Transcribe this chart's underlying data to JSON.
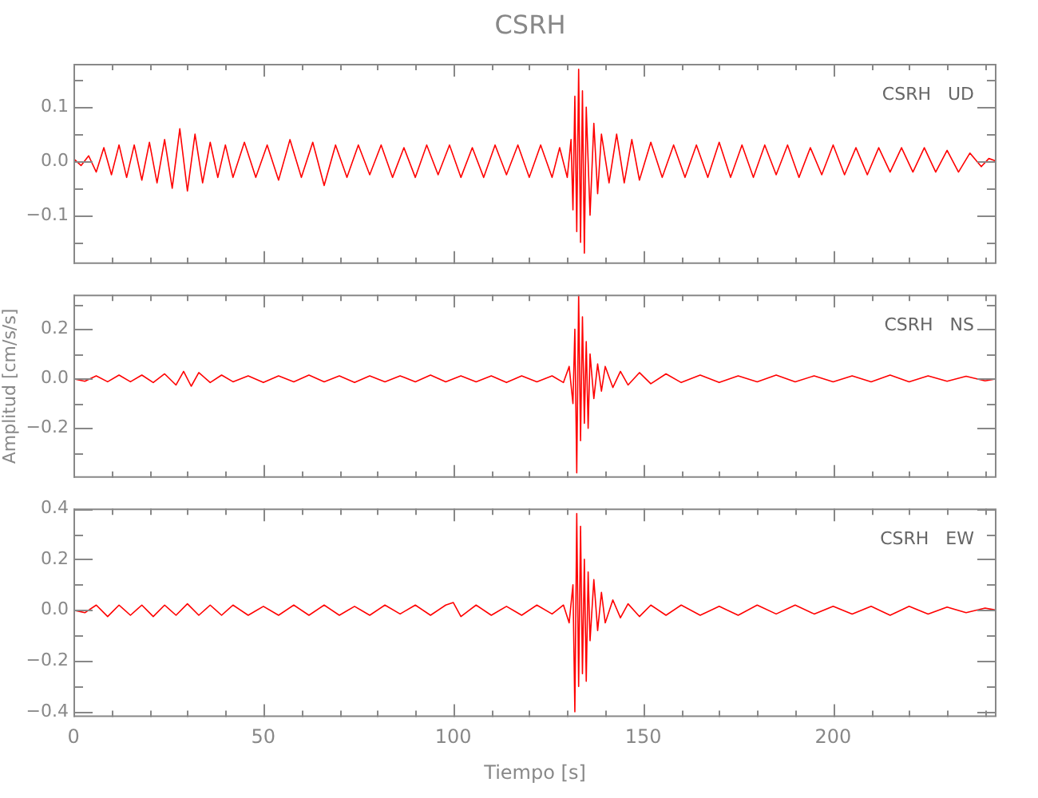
{
  "chart_data": [
    {
      "type": "line",
      "title": "CSRH",
      "annotations": [
        "CSRH   UD"
      ],
      "tick_labels": "y",
      "xlim": [
        0,
        243
      ],
      "ylim": [
        -0.19,
        0.18
      ],
      "xticks": [
        0,
        {
          "value": 10,
          "label": null
        },
        {
          "value": 20,
          "label": null
        },
        {
          "value": 30,
          "label": null
        },
        {
          "value": 40,
          "label": null
        },
        50,
        {
          "value": 60,
          "label": null
        },
        {
          "value": 70,
          "label": null
        },
        {
          "value": 80,
          "label": null
        },
        {
          "value": 90,
          "label": null
        },
        100,
        {
          "value": 110,
          "label": null
        },
        {
          "value": 120,
          "label": null
        },
        {
          "value": 130,
          "label": null
        },
        {
          "value": 140,
          "label": null
        },
        150,
        {
          "value": 160,
          "label": null
        },
        {
          "value": 170,
          "label": null
        },
        {
          "value": 180,
          "label": null
        },
        {
          "value": 190,
          "label": null
        },
        200,
        {
          "value": 210,
          "label": null
        },
        {
          "value": 220,
          "label": null
        },
        {
          "value": 230,
          "label": null
        },
        {
          "value": 240,
          "label": null
        }
      ],
      "yticks": [
        {
          "value": -0.15,
          "label": null
        },
        {
          "value": -0.1,
          "label": "−0.1"
        },
        {
          "value": -0.05,
          "label": null
        },
        {
          "value": 0,
          "label": "0.0"
        },
        {
          "value": 0.05,
          "label": null
        },
        0.1,
        {
          "value": 0.15,
          "label": null
        }
      ],
      "x": [
        0,
        2,
        4,
        6,
        8,
        10,
        12,
        14,
        16,
        18,
        20,
        22,
        24,
        26,
        28,
        30,
        32,
        34,
        36,
        38,
        40,
        42,
        45,
        48,
        51,
        54,
        57,
        60,
        63,
        66,
        69,
        72,
        75,
        78,
        81,
        84,
        87,
        90,
        93,
        96,
        99,
        102,
        105,
        108,
        111,
        114,
        117,
        120,
        123,
        126,
        128,
        130,
        131,
        131.5,
        132,
        132.5,
        133,
        133.5,
        134,
        134.5,
        135,
        136,
        137,
        138,
        139,
        141,
        143,
        145,
        147,
        149,
        152,
        155,
        158,
        161,
        164,
        167,
        170,
        173,
        176,
        179,
        182,
        185,
        188,
        191,
        194,
        197,
        200,
        203,
        206,
        209,
        212,
        215,
        218,
        221,
        224,
        227,
        230,
        233,
        236,
        239,
        241,
        243
      ],
      "series": [
        {
          "color": "#ff0000",
          "values": [
            0.005,
            -0.008,
            0.01,
            -0.02,
            0.025,
            -0.025,
            0.03,
            -0.03,
            0.03,
            -0.035,
            0.035,
            -0.04,
            0.04,
            -0.05,
            0.06,
            -0.055,
            0.05,
            -0.04,
            0.035,
            -0.03,
            0.03,
            -0.03,
            0.035,
            -0.03,
            0.03,
            -0.035,
            0.04,
            -0.03,
            0.035,
            -0.045,
            0.03,
            -0.03,
            0.03,
            -0.025,
            0.03,
            -0.03,
            0.025,
            -0.03,
            0.03,
            -0.025,
            0.03,
            -0.03,
            0.025,
            -0.03,
            0.03,
            -0.025,
            0.03,
            -0.03,
            0.03,
            -0.03,
            0.025,
            -0.03,
            0.04,
            -0.09,
            0.12,
            -0.13,
            0.17,
            -0.15,
            0.13,
            -0.17,
            0.1,
            -0.1,
            0.07,
            -0.06,
            0.05,
            -0.04,
            0.05,
            -0.04,
            0.04,
            -0.035,
            0.035,
            -0.03,
            0.03,
            -0.03,
            0.03,
            -0.03,
            0.035,
            -0.03,
            0.03,
            -0.03,
            0.03,
            -0.025,
            0.03,
            -0.03,
            0.025,
            -0.025,
            0.03,
            -0.025,
            0.025,
            -0.025,
            0.025,
            -0.02,
            0.025,
            -0.02,
            0.025,
            -0.02,
            0.02,
            -0.02,
            0.015,
            -0.01,
            0.005,
            0
          ]
        }
      ]
    },
    {
      "type": "line",
      "ylabel": "Amplitud [cm/s/s]",
      "annotations": [
        "CSRH   NS"
      ],
      "tick_labels": "y",
      "xlim": [
        0,
        243
      ],
      "ylim": [
        -0.4,
        0.34
      ],
      "xticks": [
        0,
        {
          "value": 10,
          "label": null
        },
        {
          "value": 20,
          "label": null
        },
        {
          "value": 30,
          "label": null
        },
        {
          "value": 40,
          "label": null
        },
        50,
        {
          "value": 60,
          "label": null
        },
        {
          "value": 70,
          "label": null
        },
        {
          "value": 80,
          "label": null
        },
        {
          "value": 90,
          "label": null
        },
        100,
        {
          "value": 110,
          "label": null
        },
        {
          "value": 120,
          "label": null
        },
        {
          "value": 130,
          "label": null
        },
        {
          "value": 140,
          "label": null
        },
        150,
        {
          "value": 160,
          "label": null
        },
        {
          "value": 170,
          "label": null
        },
        {
          "value": 180,
          "label": null
        },
        {
          "value": 190,
          "label": null
        },
        200,
        {
          "value": 210,
          "label": null
        },
        {
          "value": 220,
          "label": null
        },
        {
          "value": 230,
          "label": null
        },
        {
          "value": 240,
          "label": null
        }
      ],
      "yticks": [
        {
          "value": -0.3,
          "label": null
        },
        {
          "value": -0.2,
          "label": "−0.2"
        },
        {
          "value": -0.1,
          "label": null
        },
        {
          "value": 0,
          "label": "0.0"
        },
        {
          "value": 0.1,
          "label": null
        },
        0.2,
        {
          "value": 0.3,
          "label": null
        }
      ],
      "x": [
        0,
        3,
        6,
        9,
        12,
        15,
        18,
        21,
        24,
        27,
        29,
        31,
        33,
        36,
        39,
        42,
        46,
        50,
        54,
        58,
        62,
        66,
        70,
        74,
        78,
        82,
        86,
        90,
        94,
        98,
        102,
        106,
        110,
        114,
        118,
        122,
        126,
        129,
        130.5,
        131.5,
        132,
        132.5,
        133,
        133.5,
        134,
        134.5,
        135,
        135.5,
        136,
        137,
        138,
        139,
        140,
        142,
        144,
        146,
        149,
        152,
        156,
        160,
        165,
        170,
        175,
        180,
        185,
        190,
        195,
        200,
        205,
        210,
        215,
        220,
        225,
        230,
        235,
        240,
        243
      ],
      "series": [
        {
          "color": "#ff0000",
          "values": [
            0,
            -0.01,
            0.012,
            -0.012,
            0.015,
            -0.012,
            0.015,
            -0.015,
            0.02,
            -0.025,
            0.03,
            -0.03,
            0.025,
            -0.015,
            0.015,
            -0.012,
            0.012,
            -0.015,
            0.012,
            -0.012,
            0.015,
            -0.012,
            0.012,
            -0.015,
            0.012,
            -0.012,
            0.012,
            -0.012,
            0.015,
            -0.012,
            0.012,
            -0.012,
            0.012,
            -0.015,
            0.012,
            -0.012,
            0.012,
            -0.015,
            0.05,
            -0.1,
            0.2,
            -0.38,
            0.34,
            -0.25,
            0.25,
            -0.18,
            0.15,
            -0.2,
            0.1,
            -0.08,
            0.06,
            -0.05,
            0.05,
            -0.035,
            0.03,
            -0.025,
            0.025,
            -0.02,
            0.02,
            -0.015,
            0.015,
            -0.015,
            0.012,
            -0.012,
            0.015,
            -0.012,
            0.012,
            -0.012,
            0.012,
            -0.012,
            0.015,
            -0.012,
            0.012,
            -0.01,
            0.01,
            -0.008,
            0
          ]
        }
      ]
    },
    {
      "type": "line",
      "xlabel": "Tiempo [s]",
      "annotations": [
        "CSRH   EW"
      ],
      "xlim": [
        0,
        243
      ],
      "ylim": [
        -0.42,
        0.4
      ],
      "xticks": [
        0,
        {
          "value": 10,
          "label": null
        },
        {
          "value": 20,
          "label": null
        },
        {
          "value": 30,
          "label": null
        },
        {
          "value": 40,
          "label": null
        },
        50,
        {
          "value": 60,
          "label": null
        },
        {
          "value": 70,
          "label": null
        },
        {
          "value": 80,
          "label": null
        },
        {
          "value": 90,
          "label": null
        },
        100,
        {
          "value": 110,
          "label": null
        },
        {
          "value": 120,
          "label": null
        },
        {
          "value": 130,
          "label": null
        },
        {
          "value": 140,
          "label": null
        },
        150,
        {
          "value": 160,
          "label": null
        },
        {
          "value": 170,
          "label": null
        },
        {
          "value": 180,
          "label": null
        },
        {
          "value": 190,
          "label": null
        },
        200,
        {
          "value": 210,
          "label": null
        },
        {
          "value": 220,
          "label": null
        },
        {
          "value": 230,
          "label": null
        },
        {
          "value": 240,
          "label": null
        }
      ],
      "yticks": [
        {
          "value": -0.4,
          "label": "−0.4"
        },
        {
          "value": -0.3,
          "label": null
        },
        {
          "value": -0.2,
          "label": "−0.2"
        },
        {
          "value": -0.1,
          "label": null
        },
        {
          "value": 0,
          "label": "0.0"
        },
        {
          "value": 0.1,
          "label": null
        },
        0.2,
        {
          "value": 0.3,
          "label": null
        },
        0.4
      ],
      "x": [
        0,
        3,
        6,
        9,
        12,
        15,
        18,
        21,
        24,
        27,
        30,
        33,
        36,
        39,
        42,
        46,
        50,
        54,
        58,
        62,
        66,
        70,
        74,
        78,
        82,
        86,
        90,
        94,
        98,
        100,
        102,
        106,
        110,
        114,
        118,
        122,
        126,
        129,
        130.5,
        131.5,
        132,
        132.5,
        133,
        133.5,
        134,
        134.5,
        135,
        135.5,
        136,
        137,
        138,
        139,
        140,
        142,
        144,
        146,
        149,
        152,
        156,
        160,
        165,
        170,
        175,
        180,
        185,
        190,
        195,
        200,
        205,
        210,
        215,
        220,
        225,
        230,
        235,
        240,
        243
      ],
      "series": [
        {
          "color": "#ff0000",
          "values": [
            0,
            -0.01,
            0.02,
            -0.025,
            0.02,
            -0.02,
            0.02,
            -0.025,
            0.02,
            -0.02,
            0.025,
            -0.02,
            0.02,
            -0.02,
            0.02,
            -0.02,
            0.015,
            -0.02,
            0.02,
            -0.02,
            0.02,
            -0.02,
            0.015,
            -0.02,
            0.02,
            -0.015,
            0.02,
            -0.02,
            0.02,
            0.03,
            -0.025,
            0.02,
            -0.02,
            0.015,
            -0.02,
            0.02,
            -0.015,
            0.02,
            -0.05,
            0.1,
            -0.4,
            0.38,
            -0.3,
            0.33,
            -0.25,
            0.2,
            -0.28,
            0.15,
            -0.12,
            0.12,
            -0.08,
            0.07,
            -0.05,
            0.04,
            -0.03,
            0.025,
            -0.025,
            0.02,
            -0.02,
            0.02,
            -0.02,
            0.015,
            -0.02,
            0.02,
            -0.015,
            0.02,
            -0.015,
            0.015,
            -0.015,
            0.015,
            -0.02,
            0.015,
            -0.015,
            0.012,
            -0.01,
            0.008,
            0
          ]
        }
      ]
    }
  ]
}
